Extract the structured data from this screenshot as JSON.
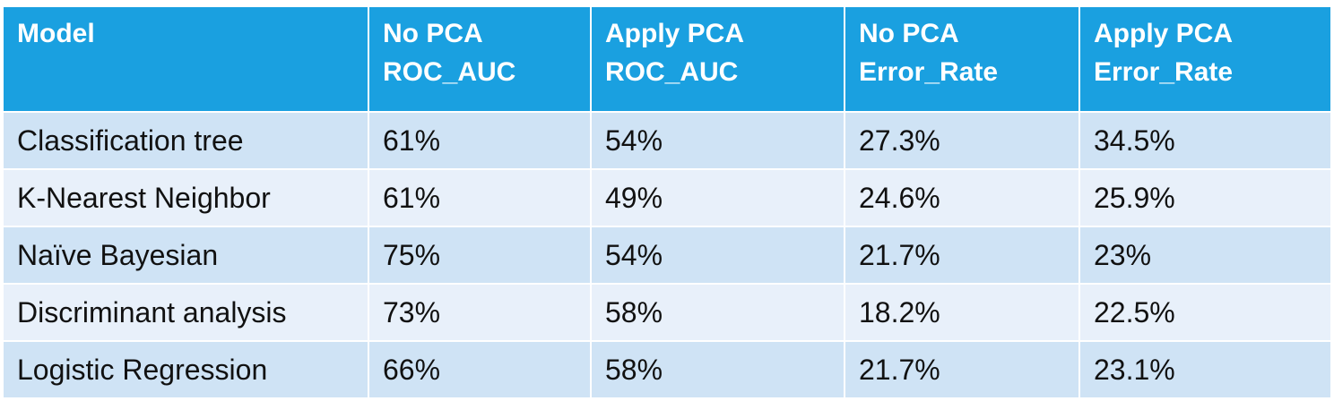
{
  "table": {
    "headers": [
      {
        "lines": [
          "Model"
        ]
      },
      {
        "lines": [
          "No PCA",
          "ROC_AUC"
        ]
      },
      {
        "lines": [
          "Apply PCA",
          "ROC_AUC"
        ]
      },
      {
        "lines": [
          "No PCA",
          "Error_Rate"
        ]
      },
      {
        "lines": [
          "Apply PCA",
          "Error_Rate"
        ]
      }
    ],
    "rows": [
      [
        "Classification tree",
        "61%",
        "54%",
        "27.3%",
        "34.5%"
      ],
      [
        "K-Nearest Neighbor",
        "61%",
        "49%",
        "24.6%",
        "25.9%"
      ],
      [
        "Naïve Bayesian",
        "75%",
        "54%",
        "21.7%",
        "23%"
      ],
      [
        "Discriminant analysis",
        "73%",
        "58%",
        "18.2%",
        "22.5%"
      ],
      [
        "Logistic Regression",
        "66%",
        "58%",
        "21.7%",
        "23.1%"
      ]
    ]
  },
  "colors": {
    "header_bg": "#1aa0e0",
    "row_odd_bg": "#cfe3f5",
    "row_even_bg": "#e8f0fa"
  }
}
